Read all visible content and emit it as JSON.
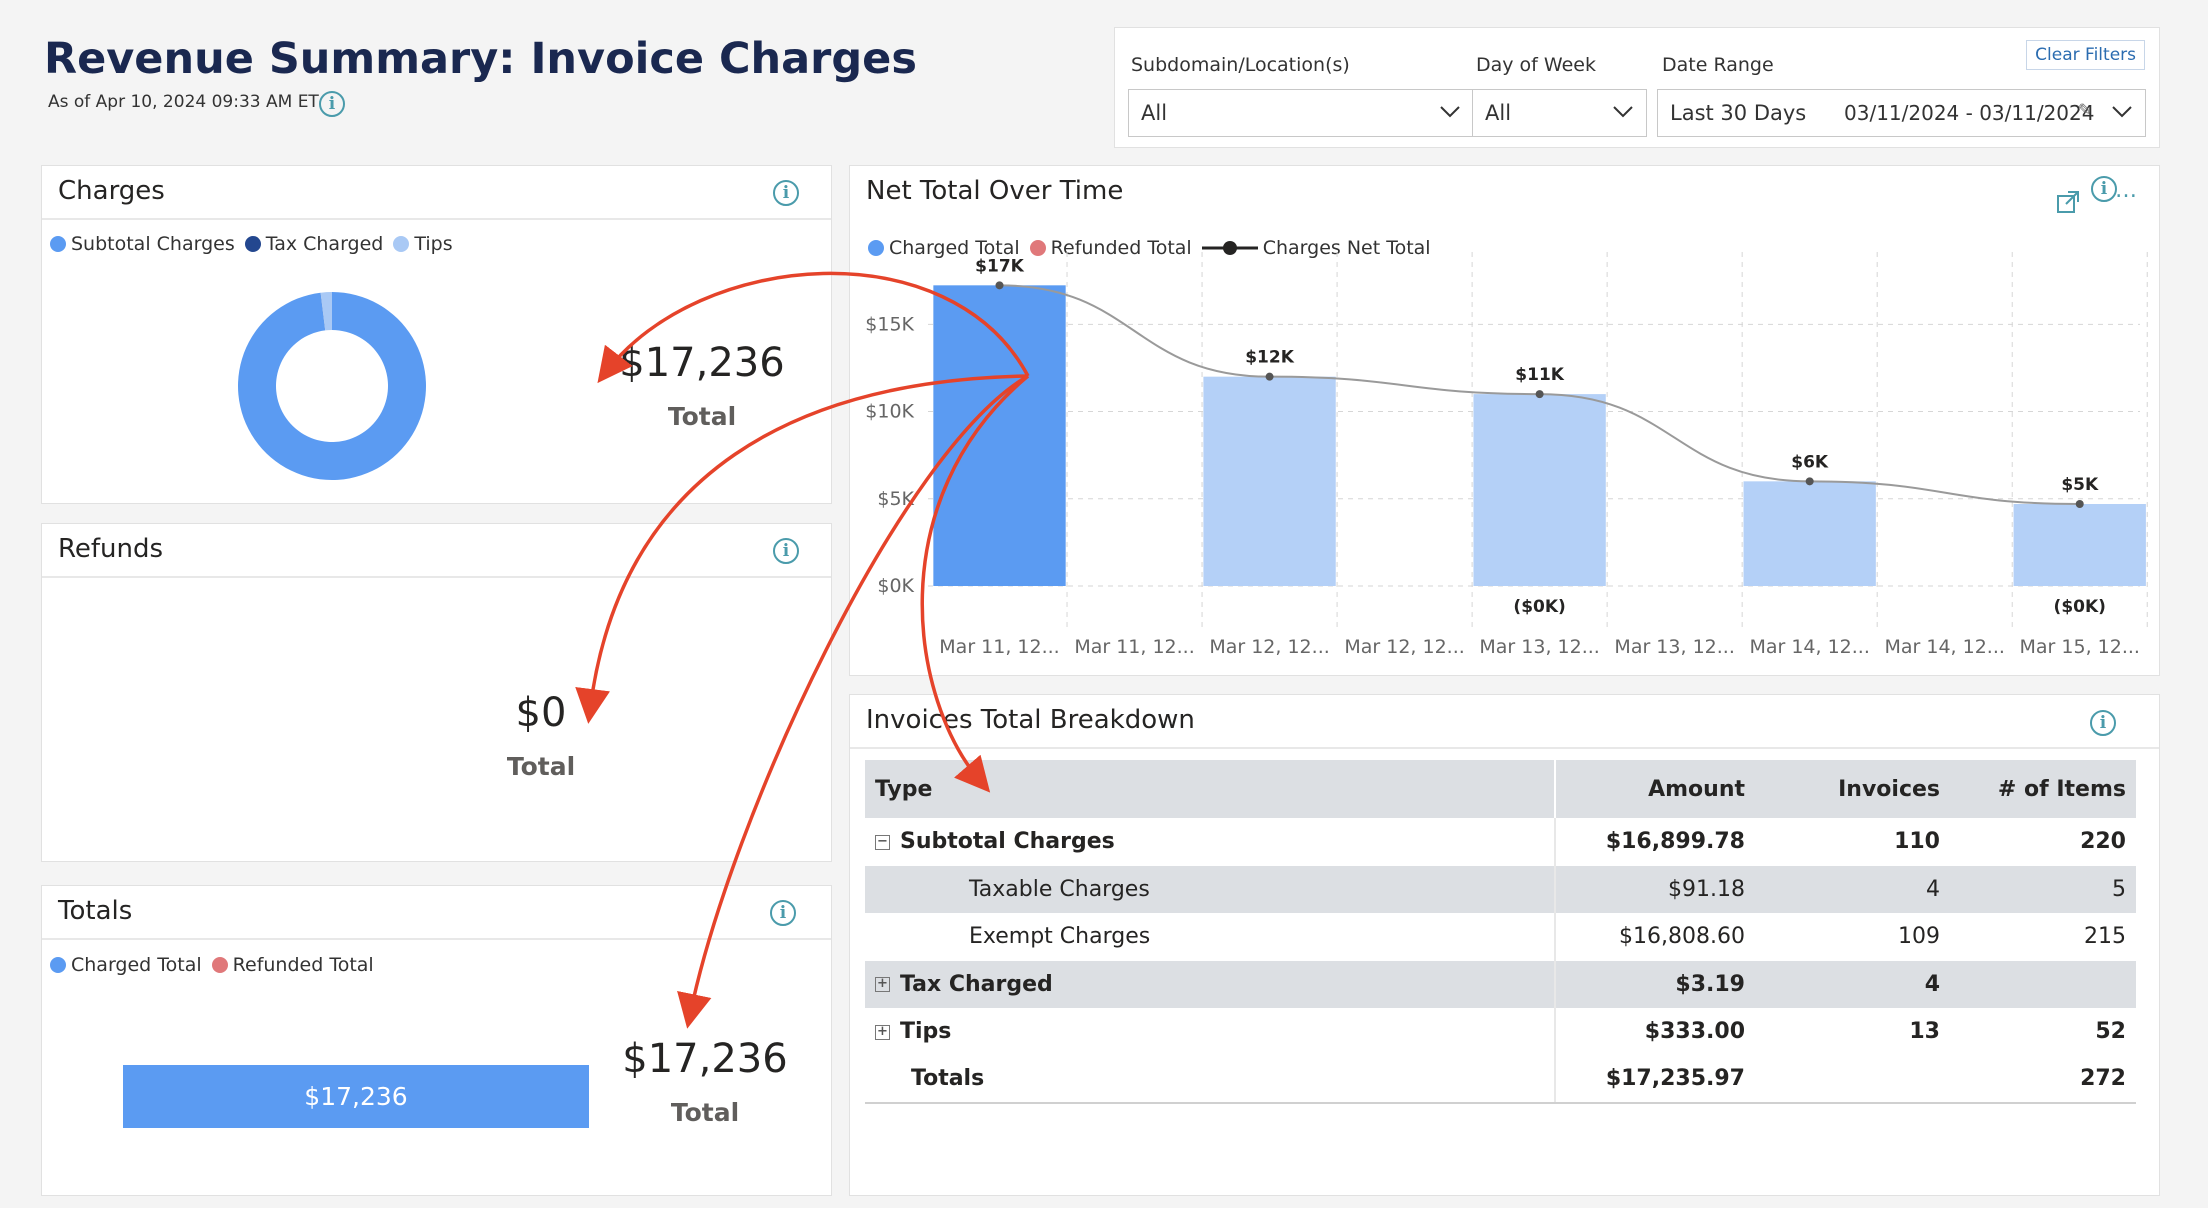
{
  "header": {
    "title": "Revenue Summary: Invoice Charges",
    "as_of": "As of Apr 10, 2024 09:33 AM ET"
  },
  "filters": {
    "clear_label": "Clear Filters",
    "subdomain": {
      "label": "Subdomain/Location(s)",
      "value": "All"
    },
    "day_of_week": {
      "label": "Day of Week",
      "value": "All"
    },
    "date_range": {
      "label": "Date Range",
      "value": "Last 30 Days",
      "range": "03/11/2024 - 03/11/2024"
    }
  },
  "charges_panel": {
    "title": "Charges",
    "legend": [
      "Subtotal Charges",
      "Tax Charged",
      "Tips"
    ],
    "colors": [
      "#5b9bf2",
      "#23478f",
      "#a9c9f5"
    ],
    "donut_values": [
      16899.78,
      3.19,
      333.0
    ],
    "total_value": "$17,236",
    "total_label": "Total"
  },
  "refunds_panel": {
    "title": "Refunds",
    "total_value": "$0",
    "total_label": "Total"
  },
  "totals_panel": {
    "title": "Totals",
    "legend": [
      "Charged Total",
      "Refunded Total"
    ],
    "colors": [
      "#5b9bf2",
      "#e0787a"
    ],
    "bar_label": "$17,236",
    "total_value": "$17,236",
    "total_label": "Total"
  },
  "net_total_panel": {
    "title": "Net Total Over Time",
    "legend": [
      "Charged Total",
      "Refunded Total",
      "Charges Net Total"
    ],
    "colors": {
      "charged": "#5b9bf2",
      "charged_light": "#b4d0f7",
      "refunded": "#e0787a",
      "net": "#252423"
    }
  },
  "chart_data": {
    "type": "bar",
    "x_tick_labels": [
      "Mar 11, 12...",
      "Mar 11, 12...",
      "Mar 12, 12...",
      "Mar 12, 12...",
      "Mar 13, 12...",
      "Mar 13, 12...",
      "Mar 14, 12...",
      "Mar 14, 12...",
      "Mar 15, 12..."
    ],
    "y_ticks": [
      "$0K",
      "$5K",
      "$10K",
      "$15K"
    ],
    "ylim": [
      0,
      18000
    ],
    "bar_slots": [
      0,
      2,
      4,
      6,
      8
    ],
    "series": [
      {
        "name": "Charged Total",
        "values": [
          17236,
          12000,
          11000,
          6000,
          4700
        ]
      },
      {
        "name": "Refunded Total",
        "values": [
          0,
          0,
          0,
          0,
          0
        ]
      },
      {
        "name": "Charges Net Total",
        "values": [
          17236,
          12000,
          11000,
          6000,
          4700
        ]
      }
    ],
    "top_labels": [
      "$17K",
      "$12K",
      "$11K",
      "$6K",
      "$5K"
    ],
    "bottom_labels": [
      "",
      "",
      "($0K)",
      "",
      "($0K)"
    ],
    "grid": true,
    "legend_position": "top-left"
  },
  "breakdown_panel": {
    "title": "Invoices Total Breakdown",
    "columns": [
      "Type",
      "Amount",
      "Invoices",
      "# of Items"
    ],
    "rows": [
      {
        "type": "Subtotal Charges",
        "amount": "$16,899.78",
        "invoices": "110",
        "items": "220"
      },
      {
        "type": "Taxable Charges",
        "amount": "$91.18",
        "invoices": "4",
        "items": "5"
      },
      {
        "type": "Exempt Charges",
        "amount": "$16,808.60",
        "invoices": "109",
        "items": "215"
      },
      {
        "type": "Tax Charged",
        "amount": "$3.19",
        "invoices": "4",
        "items": ""
      },
      {
        "type": "Tips",
        "amount": "$333.00",
        "invoices": "13",
        "items": "52"
      },
      {
        "type": "Totals",
        "amount": "$17,235.97",
        "invoices": "",
        "items": "272"
      }
    ]
  }
}
